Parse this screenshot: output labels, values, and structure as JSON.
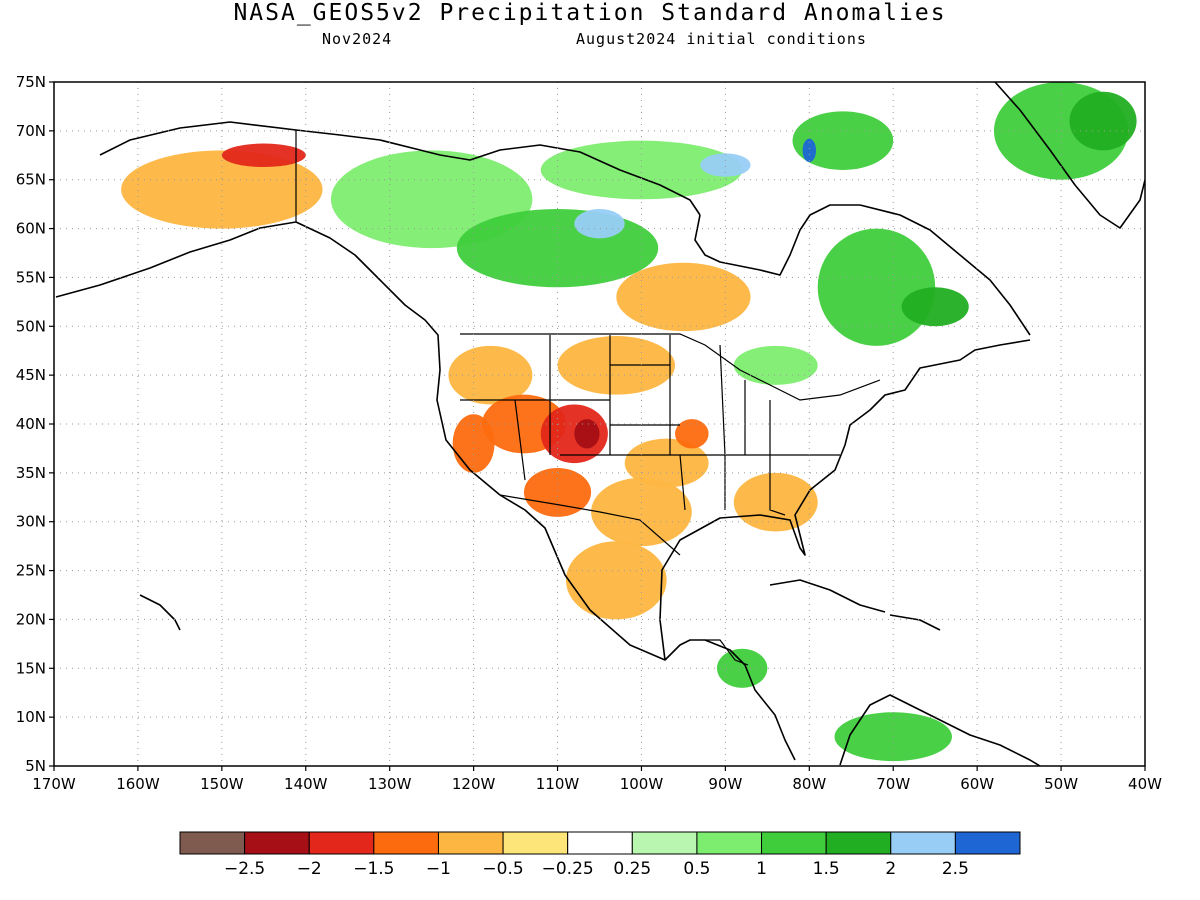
{
  "header": {
    "title": "NASA_GEOS5v2 Precipitation Standard Anomalies",
    "valid_month": "Nov2024",
    "init_conditions": "August2024 initial conditions"
  },
  "map": {
    "lon_range": [
      -170,
      -40
    ],
    "lat_range": [
      5,
      75
    ],
    "lat_ticks": [
      {
        "value": 75,
        "label": "75N"
      },
      {
        "value": 70,
        "label": "70N"
      },
      {
        "value": 65,
        "label": "65N"
      },
      {
        "value": 60,
        "label": "60N"
      },
      {
        "value": 55,
        "label": "55N"
      },
      {
        "value": 50,
        "label": "50N"
      },
      {
        "value": 45,
        "label": "45N"
      },
      {
        "value": 40,
        "label": "40N"
      },
      {
        "value": 35,
        "label": "35N"
      },
      {
        "value": 30,
        "label": "30N"
      },
      {
        "value": 25,
        "label": "25N"
      },
      {
        "value": 20,
        "label": "20N"
      },
      {
        "value": 15,
        "label": "15N"
      },
      {
        "value": 10,
        "label": "10N"
      },
      {
        "value": 5,
        "label": "5N"
      }
    ],
    "lon_ticks": [
      {
        "value": -170,
        "label": "170W"
      },
      {
        "value": -160,
        "label": "160W"
      },
      {
        "value": -150,
        "label": "150W"
      },
      {
        "value": -140,
        "label": "140W"
      },
      {
        "value": -130,
        "label": "130W"
      },
      {
        "value": -120,
        "label": "120W"
      },
      {
        "value": -110,
        "label": "110W"
      },
      {
        "value": -100,
        "label": "100W"
      },
      {
        "value": -90,
        "label": "90W"
      },
      {
        "value": -80,
        "label": "80W"
      },
      {
        "value": -70,
        "label": "70W"
      },
      {
        "value": -60,
        "label": "60W"
      },
      {
        "value": -50,
        "label": "50W"
      },
      {
        "value": -40,
        "label": "40W"
      }
    ],
    "gridlines": "dotted",
    "anomaly_regions": [
      {
        "region": "Alaska",
        "lon": -150,
        "lat": 64,
        "rx": 12,
        "ry": 4,
        "level": -0.75
      },
      {
        "region": "Northern Alaska",
        "lon": -145,
        "lat": 67.5,
        "rx": 5,
        "ry": 1.2,
        "level": -1.75
      },
      {
        "region": "Northwest Territories",
        "lon": -125,
        "lat": 63,
        "rx": 12,
        "ry": 5,
        "level": 0.75
      },
      {
        "region": "Nunavut",
        "lon": -100,
        "lat": 66,
        "rx": 12,
        "ry": 3,
        "level": 0.75
      },
      {
        "region": "Central Canada",
        "lon": -110,
        "lat": 58,
        "rx": 12,
        "ry": 4,
        "level": 1.25
      },
      {
        "region": "Hudson Bay west",
        "lon": -105,
        "lat": 60.5,
        "rx": 3,
        "ry": 1.5,
        "level": 2.25
      },
      {
        "region": "Canadian Arctic",
        "lon": -90,
        "lat": 66.5,
        "rx": 3,
        "ry": 1.2,
        "level": 2.25
      },
      {
        "region": "Baffin Island",
        "lon": -76,
        "lat": 69,
        "rx": 6,
        "ry": 3,
        "level": 1.25
      },
      {
        "region": "Baffin Island north",
        "lon": -80,
        "lat": 68,
        "rx": 0.8,
        "ry": 1.2,
        "level": 2.75
      },
      {
        "region": "Quebec",
        "lon": -72,
        "lat": 54,
        "rx": 7,
        "ry": 6,
        "level": 1.25
      },
      {
        "region": "Labrador",
        "lon": -65,
        "lat": 52,
        "rx": 4,
        "ry": 2,
        "level": 1.75
      },
      {
        "region": "Greenland",
        "lon": -50,
        "lat": 70,
        "rx": 8,
        "ry": 5,
        "level": 1.25
      },
      {
        "region": "Greenland interior",
        "lon": -45,
        "lat": 71,
        "rx": 4,
        "ry": 3,
        "level": 1.75
      },
      {
        "region": "Ontario",
        "lon": -95,
        "lat": 53,
        "rx": 8,
        "ry": 3.5,
        "level": -0.75
      },
      {
        "region": "Great Lakes",
        "lon": -84,
        "lat": 46,
        "rx": 5,
        "ry": 2,
        "level": 0.75
      },
      {
        "region": "Pacific Northwest",
        "lon": -118,
        "lat": 45,
        "rx": 5,
        "ry": 3,
        "level": -0.75
      },
      {
        "region": "Northern Plains",
        "lon": -103,
        "lat": 46,
        "rx": 7,
        "ry": 3,
        "level": -0.75
      },
      {
        "region": "Great Basin",
        "lon": -114,
        "lat": 40,
        "rx": 5,
        "ry": 3,
        "level": -1.25
      },
      {
        "region": "Four Corners",
        "lon": -108,
        "lat": 39,
        "rx": 4,
        "ry": 3,
        "level": -1.75
      },
      {
        "region": "Colorado",
        "lon": -106.5,
        "lat": 39,
        "rx": 1.5,
        "ry": 1.5,
        "level": -2.25
      },
      {
        "region": "Southwest",
        "lon": -110,
        "lat": 33,
        "rx": 4,
        "ry": 2.5,
        "level": -1.25
      },
      {
        "region": "California",
        "lon": -120,
        "lat": 38,
        "rx": 2.5,
        "ry": 3,
        "level": -1.25
      },
      {
        "region": "Texas",
        "lon": -100,
        "lat": 31,
        "rx": 6,
        "ry": 3.5,
        "level": -0.75
      },
      {
        "region": "Southern Plains",
        "lon": -97,
        "lat": 36,
        "rx": 5,
        "ry": 2.5,
        "level": -0.75
      },
      {
        "region": "Missouri",
        "lon": -94,
        "lat": 39,
        "rx": 2,
        "ry": 1.5,
        "level": -1.25
      },
      {
        "region": "Mexico",
        "lon": -103,
        "lat": 24,
        "rx": 6,
        "ry": 4,
        "level": -0.75
      },
      {
        "region": "Southeast US",
        "lon": -84,
        "lat": 32,
        "rx": 5,
        "ry": 3,
        "level": -0.75
      },
      {
        "region": "Central America",
        "lon": -88,
        "lat": 15,
        "rx": 3,
        "ry": 2,
        "level": 1.25
      },
      {
        "region": "Northern South America",
        "lon": -70,
        "lat": 8,
        "rx": 7,
        "ry": 2.5,
        "level": 1.25
      }
    ]
  },
  "colorbar": {
    "colors": [
      "#7f5a4e",
      "#a50f15",
      "#e3271a",
      "#fd6b0f",
      "#fdb641",
      "#fde57a",
      "#ffffff",
      "#b9f7b0",
      "#7ded6f",
      "#3fcd3c",
      "#22ae22",
      "#98cdf5",
      "#1f66d5"
    ],
    "labels": [
      "-2.5",
      "-2",
      "-1.5",
      "-1",
      "-0.5",
      "-0.25",
      "0.25",
      "0.5",
      "1",
      "1.5",
      "2",
      "2.5"
    ]
  }
}
